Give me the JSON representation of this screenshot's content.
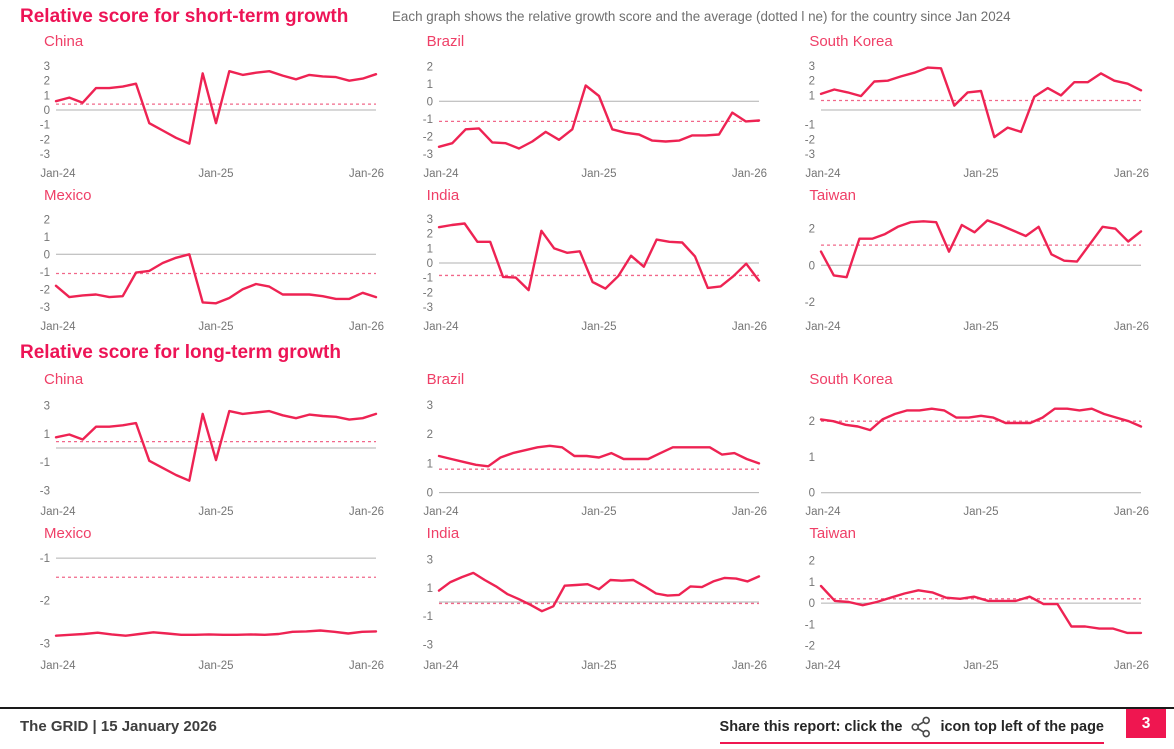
{
  "header": {
    "subtitle": "Each graph shows the relative growth score and the average (dotted l ne) for the country since Jan 2024"
  },
  "sections": [
    {
      "title": "Relative score for short-term growth"
    },
    {
      "title": "Relative score for long-term growth"
    }
  ],
  "footer": {
    "left": "The GRID | 15 January 2026",
    "share_prefix": "Share this report: click the",
    "share_suffix": "icon top left of the page",
    "page_number": "3"
  },
  "colors": {
    "accent": "#ef1650",
    "heading": "#ed1456",
    "chart_title": "#ef3f67",
    "line": "#ee2353",
    "average_dashed": "#f1688a",
    "zero_line": "#b0b0b0",
    "axis_text": "#757575"
  },
  "chart_data": [
    {
      "type": "line",
      "section": "short-term",
      "title": "China",
      "x_ticks": [
        "Jan-24",
        "Jan-25",
        "Jan-26"
      ],
      "yticks": [
        3,
        2,
        1,
        0,
        -1,
        -2,
        -3
      ],
      "ylim": [
        -3.35,
        3.35
      ],
      "average": 0.4,
      "gray_line": 0,
      "values": [
        0.6,
        0.85,
        0.5,
        1.5,
        1.5,
        1.6,
        1.8,
        -0.9,
        -1.4,
        -1.9,
        -2.3,
        2.5,
        -0.9,
        2.65,
        2.4,
        2.55,
        2.65,
        2.35,
        2.1,
        2.4,
        2.3,
        2.25,
        2.0,
        2.15,
        2.45
      ]
    },
    {
      "type": "line",
      "section": "short-term",
      "title": "Brazil",
      "x_ticks": [
        "Jan-24",
        "Jan-25",
        "Jan-26"
      ],
      "yticks": [
        2,
        1,
        0,
        -1,
        -2,
        -3
      ],
      "ylim": [
        -3.3,
        2.3
      ],
      "average": -1.15,
      "gray_line": 0,
      "values": [
        -2.6,
        -2.4,
        -1.6,
        -1.55,
        -2.35,
        -2.4,
        -2.7,
        -2.3,
        -1.75,
        -2.2,
        -1.6,
        0.9,
        0.3,
        -1.6,
        -1.8,
        -1.9,
        -2.25,
        -2.3,
        -2.25,
        -1.95,
        -1.95,
        -1.9,
        -0.65,
        -1.15,
        -1.1
      ]
    },
    {
      "type": "line",
      "section": "short-term",
      "title": "South Korea",
      "x_ticks": [
        "Jan-24",
        "Jan-25",
        "Jan-26"
      ],
      "yticks": [
        3,
        2,
        1,
        -1,
        -2,
        -3
      ],
      "ylim": [
        -3.35,
        3.35
      ],
      "average": 0.65,
      "gray_line": 0,
      "values": [
        1.1,
        1.4,
        1.2,
        0.95,
        1.95,
        2.0,
        2.3,
        2.55,
        2.9,
        2.85,
        0.3,
        1.2,
        1.3,
        -1.85,
        -1.2,
        -1.5,
        0.9,
        1.5,
        1.0,
        1.9,
        1.9,
        2.5,
        2.0,
        1.8,
        1.35
      ]
    },
    {
      "type": "line",
      "section": "short-term",
      "title": "Mexico",
      "x_ticks": [
        "Jan-24",
        "Jan-25",
        "Jan-26"
      ],
      "yticks": [
        2,
        1,
        0,
        -1,
        -2,
        -3
      ],
      "ylim": [
        -3.3,
        2.3
      ],
      "average": -1.1,
      "gray_line": 0,
      "values": [
        -1.8,
        -2.45,
        -2.35,
        -2.3,
        -2.45,
        -2.4,
        -1.05,
        -0.95,
        -0.5,
        -0.2,
        0.0,
        -2.75,
        -2.8,
        -2.5,
        -2.0,
        -1.7,
        -1.85,
        -2.3,
        -2.3,
        -2.3,
        -2.4,
        -2.55,
        -2.55,
        -2.2,
        -2.45
      ]
    },
    {
      "type": "line",
      "section": "short-term",
      "title": "India",
      "x_ticks": [
        "Jan-24",
        "Jan-25",
        "Jan-26"
      ],
      "yticks": [
        3,
        2,
        1,
        0,
        -1,
        -2,
        -3
      ],
      "ylim": [
        -3.35,
        3.35
      ],
      "average": -0.85,
      "gray_line": 0,
      "values": [
        2.45,
        2.6,
        2.7,
        1.45,
        1.45,
        -0.95,
        -1.0,
        -1.85,
        2.2,
        1.0,
        0.7,
        0.8,
        -1.3,
        -1.75,
        -0.9,
        0.5,
        -0.25,
        1.6,
        1.45,
        1.4,
        0.45,
        -1.7,
        -1.6,
        -0.9,
        -0.05,
        -1.2
      ]
    },
    {
      "type": "line",
      "section": "short-term",
      "title": "Taiwan",
      "x_ticks": [
        "Jan-24",
        "Jan-25",
        "Jan-26"
      ],
      "yticks": [
        2,
        0,
        -2
      ],
      "ylim": [
        -2.55,
        2.8
      ],
      "average": 1.1,
      "gray_line": 0,
      "values": [
        0.75,
        -0.55,
        -0.65,
        1.45,
        1.45,
        1.7,
        2.1,
        2.35,
        2.4,
        2.35,
        0.75,
        2.2,
        1.8,
        2.45,
        2.2,
        1.9,
        1.6,
        2.1,
        0.6,
        0.25,
        0.2,
        1.15,
        2.1,
        2.0,
        1.3,
        1.85
      ]
    },
    {
      "type": "line",
      "section": "long-term",
      "title": "China",
      "x_ticks": [
        "Jan-24",
        "Jan-25",
        "Jan-26"
      ],
      "yticks": [
        3,
        1,
        -1,
        -3
      ],
      "ylim": [
        -3.45,
        3.45
      ],
      "average": 0.45,
      "gray_line": 0,
      "values": [
        0.75,
        0.95,
        0.6,
        1.5,
        1.5,
        1.6,
        1.75,
        -0.9,
        -1.4,
        -1.9,
        -2.3,
        2.4,
        -0.85,
        2.6,
        2.4,
        2.5,
        2.6,
        2.3,
        2.1,
        2.35,
        2.25,
        2.2,
        2.0,
        2.1,
        2.4
      ]
    },
    {
      "type": "line",
      "section": "long-term",
      "title": "Brazil",
      "x_ticks": [
        "Jan-24",
        "Jan-25",
        "Jan-26"
      ],
      "yticks": [
        3,
        2,
        1,
        0
      ],
      "ylim": [
        -0.15,
        3.2
      ],
      "average": 0.8,
      "gray_line": 0,
      "values": [
        1.25,
        1.15,
        1.05,
        0.95,
        0.9,
        1.2,
        1.35,
        1.45,
        1.55,
        1.6,
        1.55,
        1.25,
        1.25,
        1.2,
        1.35,
        1.15,
        1.15,
        1.15,
        1.35,
        1.55,
        1.55,
        1.55,
        1.55,
        1.3,
        1.35,
        1.15,
        1.0
      ]
    },
    {
      "type": "line",
      "section": "long-term",
      "title": "South Korea",
      "x_ticks": [
        "Jan-24",
        "Jan-25",
        "Jan-26"
      ],
      "yticks": [
        2,
        1,
        0
      ],
      "ylim": [
        -0.12,
        2.62
      ],
      "average": 2.0,
      "gray_line": 0,
      "values": [
        2.05,
        2.0,
        1.9,
        1.85,
        1.75,
        2.05,
        2.2,
        2.3,
        2.3,
        2.35,
        2.3,
        2.1,
        2.1,
        2.15,
        2.1,
        1.95,
        1.95,
        1.95,
        2.1,
        2.35,
        2.35,
        2.3,
        2.35,
        2.2,
        2.1,
        2.0,
        1.85
      ]
    },
    {
      "type": "line",
      "section": "long-term",
      "title": "Mexico",
      "x_ticks": [
        "Jan-24",
        "Jan-25",
        "Jan-26"
      ],
      "yticks": [
        -1,
        -2,
        -3
      ],
      "ylim": [
        -3.18,
        -0.88
      ],
      "average": -1.45,
      "gray_line": -1,
      "values": [
        -2.82,
        -2.8,
        -2.78,
        -2.75,
        -2.79,
        -2.82,
        -2.78,
        -2.74,
        -2.77,
        -2.8,
        -2.8,
        -2.79,
        -2.8,
        -2.8,
        -2.79,
        -2.8,
        -2.78,
        -2.73,
        -2.72,
        -2.7,
        -2.73,
        -2.77,
        -2.73,
        -2.72
      ]
    },
    {
      "type": "line",
      "section": "long-term",
      "title": "India",
      "x_ticks": [
        "Jan-24",
        "Jan-25",
        "Jan-26"
      ],
      "yticks": [
        3,
        1,
        -1,
        -3
      ],
      "ylim": [
        -3.45,
        3.45
      ],
      "average": -0.1,
      "gray_line": 0,
      "values": [
        0.8,
        1.4,
        1.75,
        2.05,
        1.55,
        1.1,
        0.55,
        0.2,
        -0.2,
        -0.65,
        -0.3,
        1.15,
        1.2,
        1.25,
        0.9,
        1.55,
        1.5,
        1.55,
        1.1,
        0.6,
        0.45,
        0.5,
        1.1,
        1.05,
        1.45,
        1.7,
        1.65,
        1.45,
        1.8
      ]
    },
    {
      "type": "line",
      "section": "long-term",
      "title": "Taiwan",
      "x_ticks": [
        "Jan-24",
        "Jan-25",
        "Jan-26"
      ],
      "yticks": [
        2,
        1,
        0,
        -1,
        -2
      ],
      "ylim": [
        -2.25,
        2.35
      ],
      "average": 0.2,
      "gray_line": 0,
      "values": [
        0.8,
        0.1,
        0.05,
        -0.1,
        0.05,
        0.25,
        0.45,
        0.6,
        0.5,
        0.25,
        0.2,
        0.3,
        0.1,
        0.1,
        0.1,
        0.3,
        -0.05,
        -0.05,
        -1.1,
        -1.1,
        -1.2,
        -1.2,
        -1.4,
        -1.4
      ]
    }
  ]
}
